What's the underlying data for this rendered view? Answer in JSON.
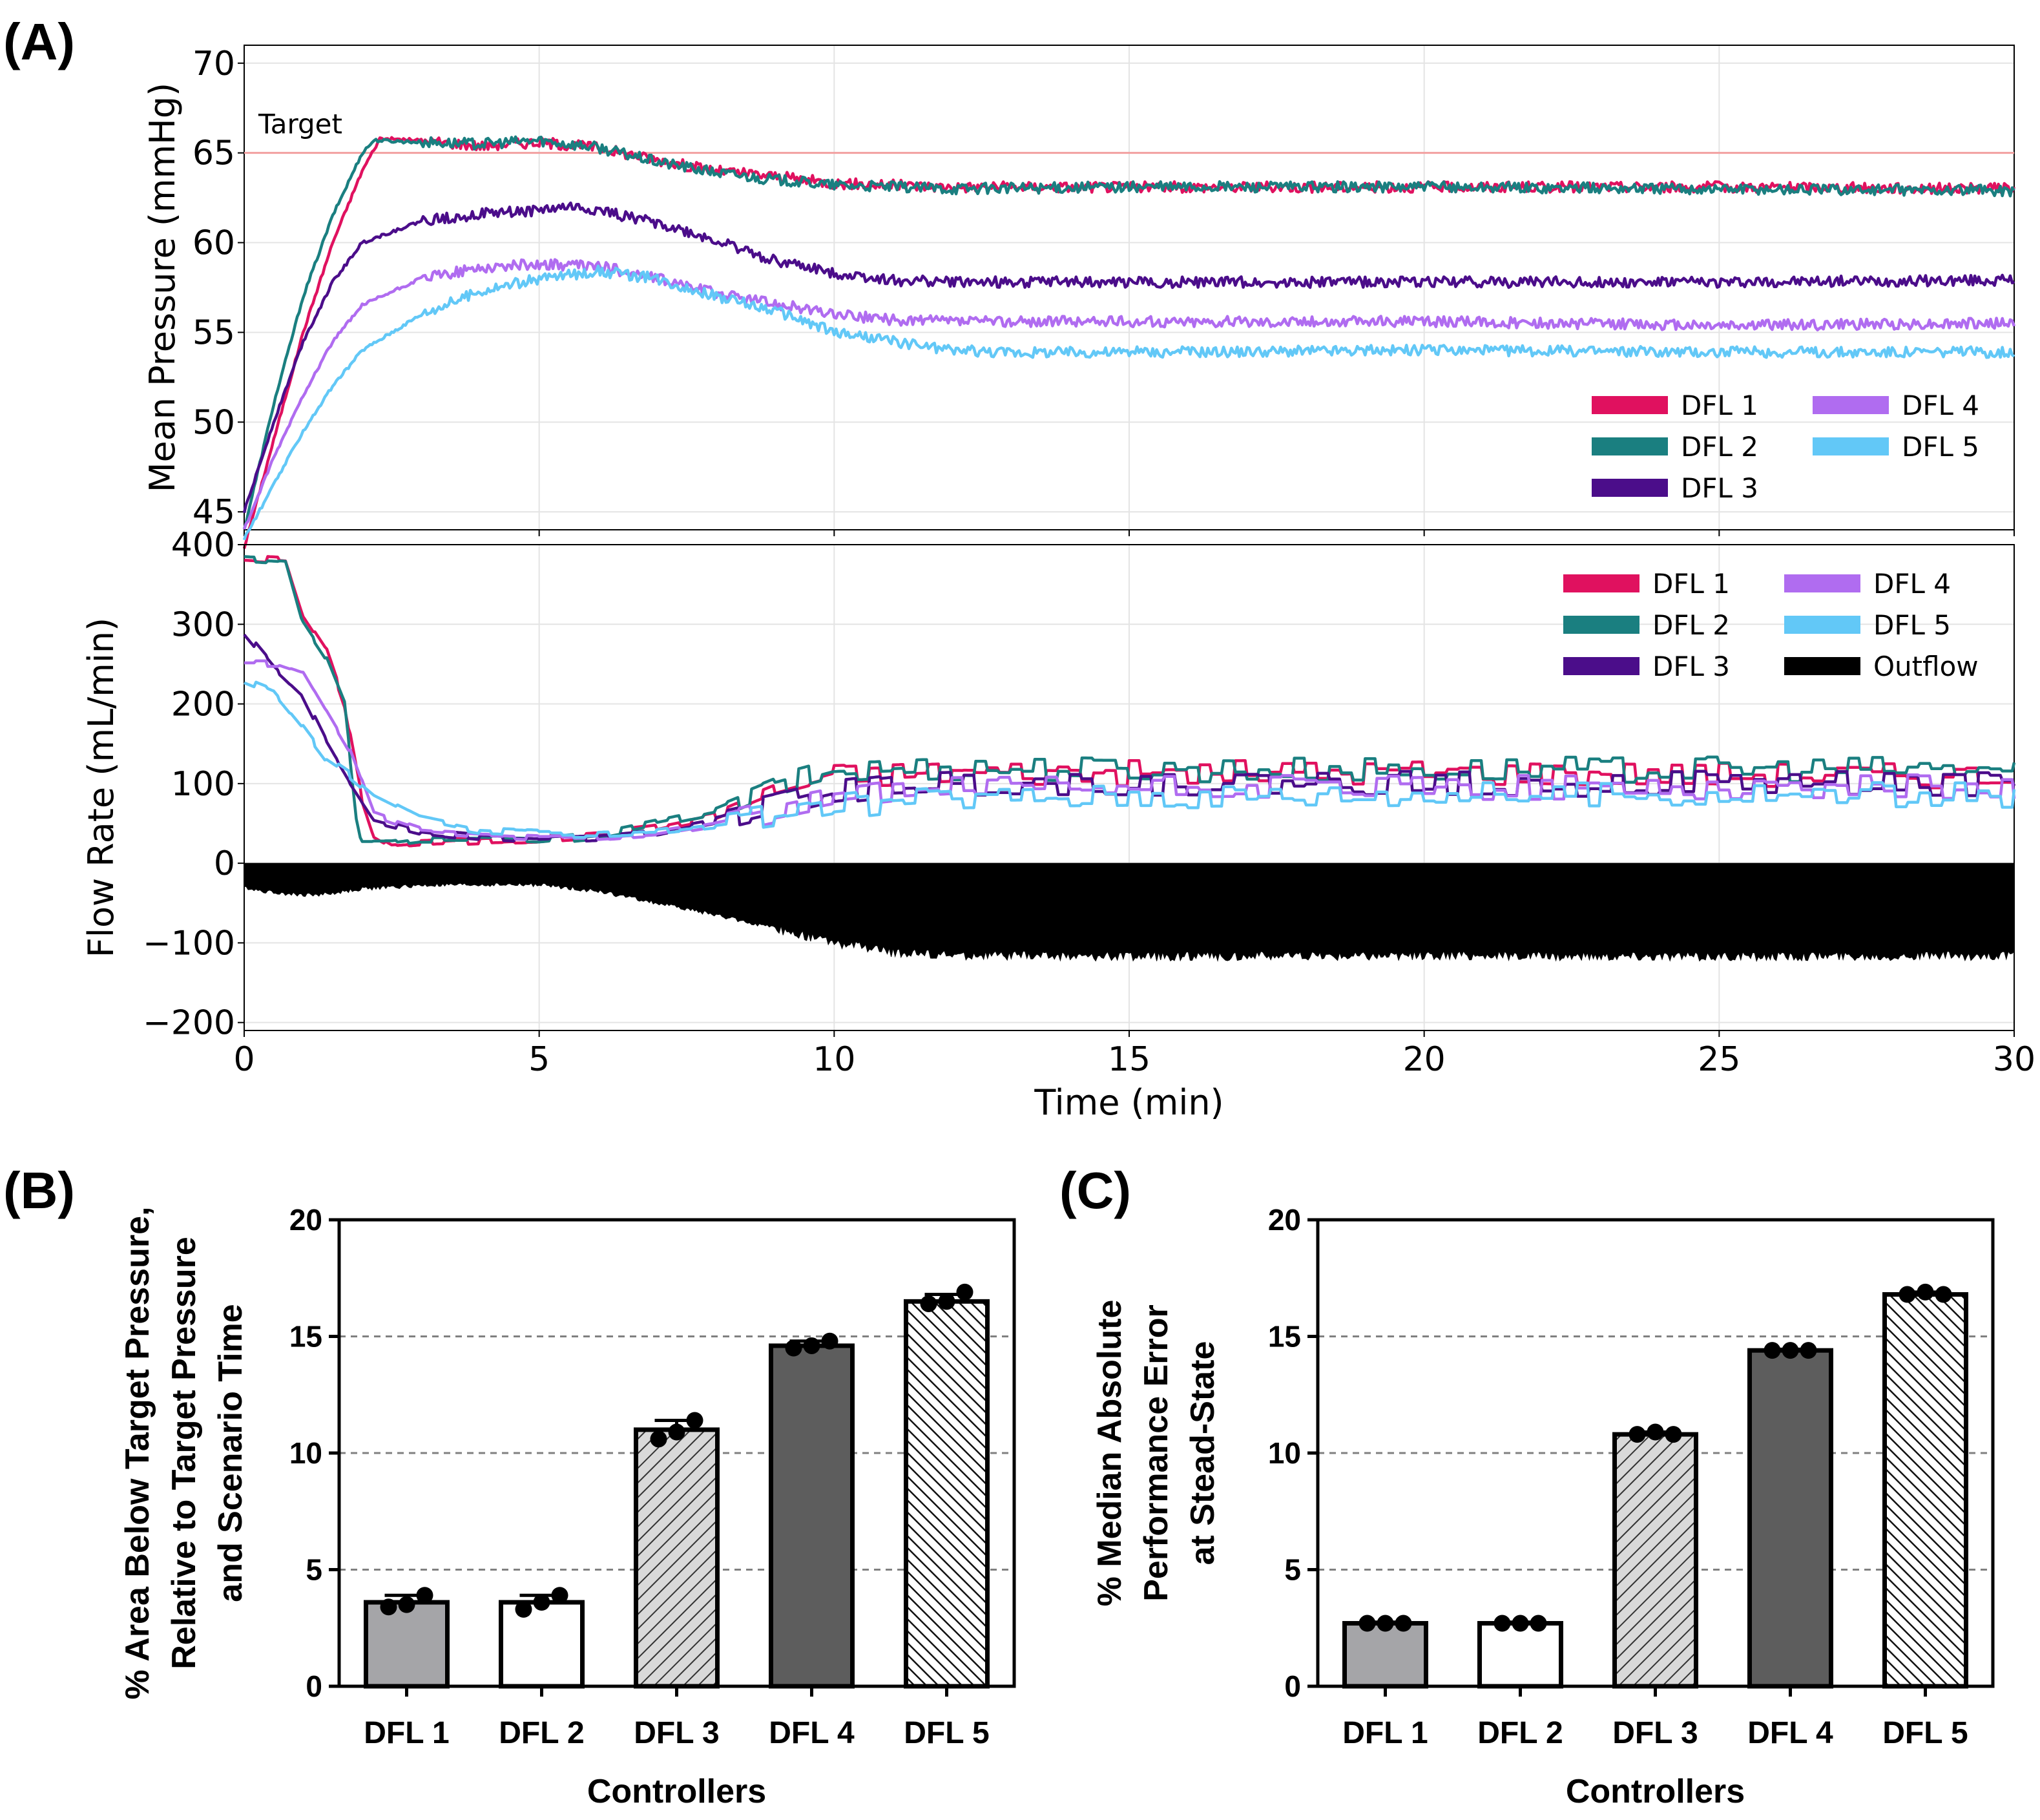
{
  "panel_labels": {
    "a": "(A)",
    "b": "(B)",
    "c": "(C)"
  },
  "colors": {
    "DFL 1": "#e0115f",
    "DFL 2": "#1a7f80",
    "DFL 3": "#4b0d8a",
    "DFL 4": "#b06cf0",
    "DFL 5": "#62c8f7",
    "Outflow": "#000000",
    "target_line": "#f2a0a0",
    "grid": "#e4e4e4",
    "bar_dash": "#808080"
  },
  "chart_data": [
    {
      "type": "line",
      "title": "",
      "xlabel": "",
      "ylabel": "Mean Pressure (mmHg)",
      "xlim": [
        0,
        30
      ],
      "ylim": [
        44,
        71
      ],
      "xticks": [
        0,
        5,
        10,
        15,
        20,
        25,
        30
      ],
      "yticks": [
        45,
        50,
        55,
        60,
        65,
        70
      ],
      "target": {
        "label": "Target",
        "value": 65
      },
      "legend": {
        "position": "bottom-right",
        "entries": [
          "DFL 1",
          "DFL 2",
          "DFL 3",
          "DFL 4",
          "DFL 5"
        ]
      },
      "series": [
        {
          "name": "DFL 1",
          "x": [
            0,
            0.5,
            1,
            1.5,
            2,
            2.3,
            3,
            4,
            5,
            6,
            7,
            8,
            9,
            10,
            12,
            15,
            20,
            25,
            30
          ],
          "values": [
            43,
            49,
            55,
            60,
            64,
            65.8,
            65.7,
            65.4,
            65.6,
            65.3,
            64.6,
            64,
            63.7,
            63.3,
            63.1,
            63.1,
            63.1,
            63.1,
            63
          ]
        },
        {
          "name": "DFL 2",
          "x": [
            0,
            0.5,
            1,
            1.5,
            2,
            2.2,
            3,
            4,
            5,
            6,
            7,
            8,
            9,
            10,
            12,
            15,
            20,
            25,
            30
          ],
          "values": [
            44,
            51,
            57,
            61.5,
            65,
            65.7,
            65.6,
            65.5,
            65.7,
            65.3,
            64.5,
            63.9,
            63.5,
            63.2,
            63,
            63.1,
            63.1,
            63,
            62.9
          ]
        },
        {
          "name": "DFL 3",
          "x": [
            0,
            0.5,
            1,
            1.5,
            2,
            3,
            4,
            5,
            5.5,
            6,
            7,
            8,
            9,
            10,
            11,
            12,
            15,
            20,
            25,
            30
          ],
          "values": [
            45,
            50,
            54.5,
            57.8,
            60,
            61.2,
            61.6,
            61.8,
            62,
            61.8,
            61.1,
            60.1,
            59,
            58.3,
            57.9,
            57.8,
            57.8,
            57.8,
            57.8,
            57.9
          ]
        },
        {
          "name": "DFL 4",
          "x": [
            0,
            0.5,
            1,
            1.5,
            2,
            3,
            4,
            5,
            6,
            7,
            8,
            9,
            10,
            11,
            12,
            15,
            20,
            25,
            30
          ],
          "values": [
            44,
            48,
            51.5,
            54.5,
            56.5,
            58,
            58.6,
            58.8,
            58.7,
            58,
            57.2,
            56.6,
            56,
            55.7,
            55.6,
            55.6,
            55.6,
            55.4,
            55.5
          ]
        },
        {
          "name": "DFL 5",
          "x": [
            0,
            0.5,
            1,
            1.5,
            2,
            3,
            4,
            5,
            6,
            7,
            8,
            9,
            10,
            11,
            12,
            13,
            15,
            20,
            25,
            30
          ],
          "values": [
            43.5,
            46.5,
            49.5,
            52,
            54,
            56,
            57.3,
            58,
            58.4,
            58,
            57,
            56.2,
            55,
            54.5,
            54,
            53.9,
            53.9,
            54,
            53.9,
            53.9
          ]
        }
      ]
    },
    {
      "type": "line",
      "title": "",
      "xlabel": "Time (min)",
      "ylabel": "Flow Rate (mL/min)",
      "xlim": [
        0,
        30
      ],
      "ylim": [
        -210,
        400
      ],
      "xticks": [
        0,
        5,
        10,
        15,
        20,
        25,
        30
      ],
      "yticks": [
        -200,
        -100,
        0,
        100,
        200,
        300,
        400
      ],
      "ytick_labels": [
        "−200",
        "−100",
        "0",
        "100",
        "200",
        "300",
        "400"
      ],
      "legend": {
        "position": "top-right",
        "entries": [
          "DFL 1",
          "DFL 2",
          "DFL 3",
          "DFL 4",
          "DFL 5",
          "Outflow"
        ]
      },
      "series": [
        {
          "name": "DFL 1",
          "x": [
            0,
            0.7,
            1,
            1.4,
            1.7,
            2,
            2.2,
            2.5,
            3,
            4,
            5,
            6,
            7,
            8,
            9,
            10,
            11,
            12,
            15,
            20,
            25,
            30
          ],
          "values": [
            383,
            380,
            310,
            265,
            200,
            80,
            35,
            22,
            25,
            28,
            30,
            35,
            45,
            60,
            90,
            110,
            112,
            115,
            113,
            115,
            112,
            110
          ]
        },
        {
          "name": "DFL 2",
          "x": [
            0,
            0.7,
            1,
            1.4,
            1.7,
            1.9,
            2,
            2.5,
            3,
            4,
            5,
            6,
            7,
            8,
            9,
            10,
            11,
            12,
            15,
            20,
            25,
            30
          ],
          "values": [
            383,
            380,
            300,
            255,
            200,
            60,
            25,
            25,
            30,
            30,
            28,
            35,
            50,
            65,
            95,
            115,
            118,
            120,
            118,
            117,
            118,
            118
          ]
        },
        {
          "name": "DFL 3",
          "x": [
            0,
            0.5,
            1,
            1.4,
            1.8,
            2.2,
            3,
            4,
            5,
            6,
            7,
            8,
            9,
            10,
            11,
            12,
            15,
            20,
            25,
            30
          ],
          "values": [
            290,
            245,
            210,
            150,
            100,
            55,
            40,
            33,
            30,
            33,
            40,
            55,
            72,
            90,
            98,
            100,
            100,
            100,
            100,
            100
          ]
        },
        {
          "name": "DFL 4",
          "x": [
            0,
            0.6,
            1,
            1.4,
            1.8,
            2.2,
            3,
            4,
            5,
            6,
            7,
            8,
            9,
            10,
            11,
            12,
            15,
            20,
            25,
            30
          ],
          "values": [
            250,
            250,
            240,
            190,
            140,
            60,
            40,
            35,
            32,
            33,
            38,
            50,
            65,
            80,
            88,
            92,
            94,
            95,
            95,
            95
          ]
        },
        {
          "name": "DFL 5",
          "x": [
            0,
            0.5,
            1,
            1.4,
            1.8,
            2.2,
            3,
            4,
            5,
            6,
            7,
            8,
            9,
            10,
            11,
            12,
            15,
            20,
            25,
            30
          ],
          "values": [
            230,
            215,
            170,
            130,
            110,
            85,
            55,
            40,
            37,
            37,
            40,
            48,
            58,
            70,
            78,
            82,
            85,
            86,
            86,
            86
          ]
        },
        {
          "name": "Outflow",
          "x": [
            0,
            0.3,
            1,
            1.5,
            2,
            3,
            4,
            5,
            6,
            7,
            8,
            9,
            10,
            11,
            12,
            15,
            20,
            25,
            30
          ],
          "values": [
            -30,
            -35,
            -40,
            -38,
            -32,
            -28,
            -27,
            -27,
            -35,
            -50,
            -65,
            -82,
            -100,
            -112,
            -116,
            -117,
            -116,
            -117,
            -116
          ]
        }
      ]
    },
    {
      "type": "bar",
      "title": "",
      "xlabel": "Controllers",
      "ylabel": "% Area Below Target Pressure, Relative to Target Pressure and Scenario Time",
      "ylabel_lines": [
        "% Area Below Target Pressure,",
        "Relative to Target Pressure",
        "and Scenario Time"
      ],
      "categories": [
        "DFL 1",
        "DFL 2",
        "DFL 3",
        "DFL 4",
        "DFL 5"
      ],
      "values": [
        3.6,
        3.6,
        11.0,
        14.6,
        16.5
      ],
      "points": [
        [
          3.4,
          3.5,
          3.9
        ],
        [
          3.3,
          3.6,
          3.9
        ],
        [
          10.6,
          10.9,
          11.4
        ],
        [
          14.5,
          14.6,
          14.8
        ],
        [
          16.4,
          16.5,
          16.9
        ]
      ],
      "error": [
        0.3,
        0.3,
        0.4,
        0.2,
        0.3
      ],
      "ylim": [
        0,
        20
      ],
      "yticks": [
        0,
        5,
        10,
        15,
        20
      ],
      "fills": [
        "gray",
        "white",
        "hatch-light",
        "dark",
        "hatch-dense"
      ]
    },
    {
      "type": "bar",
      "title": "",
      "xlabel": "Controllers",
      "ylabel": "% Median Absolute Performance Error at Stead-State",
      "ylabel_lines": [
        "% Median Absolute",
        "Performance Error",
        "at Stead-State"
      ],
      "categories": [
        "DFL 1",
        "DFL 2",
        "DFL 3",
        "DFL 4",
        "DFL 5"
      ],
      "values": [
        2.7,
        2.7,
        10.8,
        14.4,
        16.8
      ],
      "points": [
        [
          2.7,
          2.7,
          2.7
        ],
        [
          2.7,
          2.7,
          2.7
        ],
        [
          10.8,
          10.9,
          10.8
        ],
        [
          14.4,
          14.4,
          14.4
        ],
        [
          16.8,
          16.9,
          16.8
        ]
      ],
      "error": [
        0.05,
        0.05,
        0.1,
        0.05,
        0.1
      ],
      "ylim": [
        0,
        20
      ],
      "yticks": [
        0,
        5,
        10,
        15,
        20
      ],
      "fills": [
        "gray",
        "white",
        "hatch-light",
        "dark",
        "hatch-dense"
      ]
    }
  ]
}
